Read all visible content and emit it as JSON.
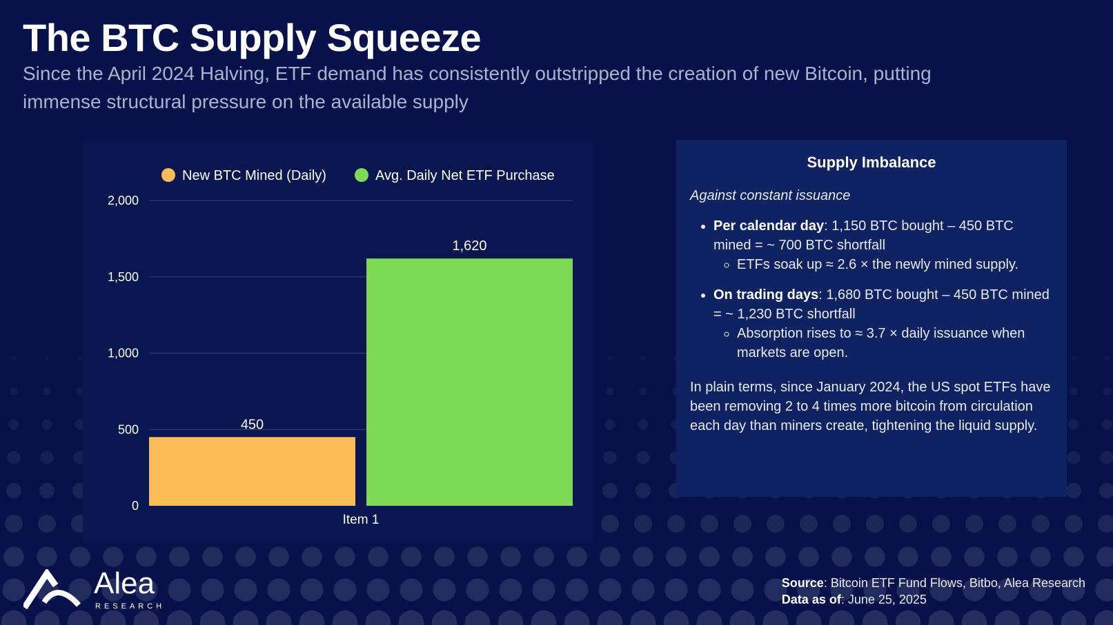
{
  "header": {
    "title": "The BTC Supply Squeeze",
    "subtitle": "Since the April 2024 Halving, ETF demand has consistently outstripped the creation of new Bitcoin, putting immense structural pressure on the available supply"
  },
  "chart_data": {
    "type": "bar",
    "categories": [
      "Item 1"
    ],
    "series": [
      {
        "name": "New BTC Mined (Daily)",
        "values": [
          450
        ],
        "color": "#ffbd59",
        "label": "450"
      },
      {
        "name": "Avg. Daily Net ETF Purchase",
        "values": [
          1620
        ],
        "color": "#7ed957",
        "label": "1,620"
      }
    ],
    "ylim": [
      0,
      2000
    ],
    "yticks": [
      {
        "value": 0,
        "label": "0"
      },
      {
        "value": 500,
        "label": "500"
      },
      {
        "value": 1000,
        "label": "1,000"
      },
      {
        "value": 1500,
        "label": "1,500"
      },
      {
        "value": 2000,
        "label": "2,000"
      }
    ],
    "grid": true,
    "legend_position": "top"
  },
  "info": {
    "title": "Supply Imbalance",
    "intro": "Against constant issuance",
    "bullets": [
      {
        "bold": "Per calendar day",
        "text": ": 1,150 BTC bought – 450 BTC mined = ~ 700 BTC shortfall",
        "sub": "ETFs soak up ≈ 2.6 × the newly mined supply."
      },
      {
        "bold": "On trading days",
        "text": ": 1,680 BTC bought – 450 BTC mined = ~ 1,230 BTC shortfall",
        "sub": "Absorption rises to ≈ 3.7 × daily issuance when markets are open."
      }
    ],
    "paragraph": "In plain terms, since January 2024, the US spot ETFs have been removing 2 to 4 times more bitcoin from circulation each day than miners create, tightening the liquid supply."
  },
  "logo": {
    "name": "Alea",
    "tagline": "RESEARCH",
    "icon": "alea-logo-icon"
  },
  "footer": {
    "source_label": "Source",
    "source_text": ": Bitcoin ETF Fund Flows, Bitbo, Alea Research",
    "date_label": "Data as of",
    "date_text": ": June 25, 2025"
  },
  "colors": {
    "background": "#07124a",
    "panel": "#0a1650",
    "info_panel": "#0f2261",
    "mined": "#ffbd59",
    "etf": "#7ed957"
  }
}
